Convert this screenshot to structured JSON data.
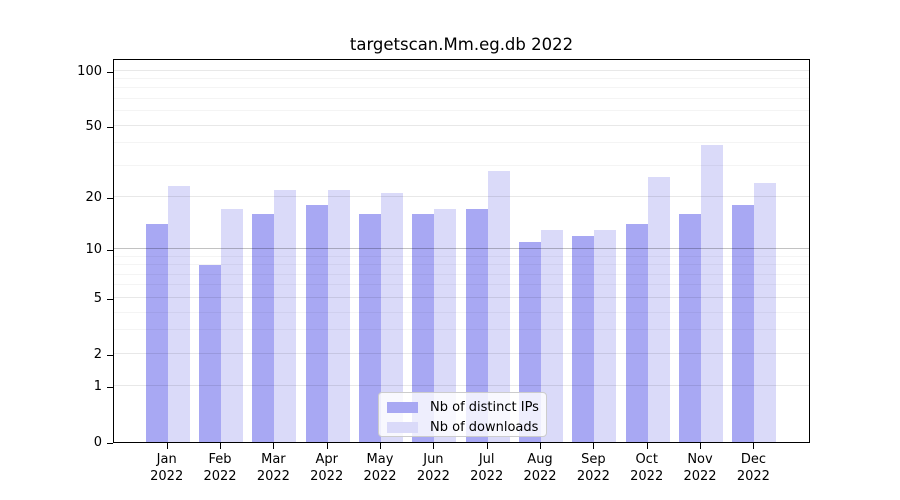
{
  "chart_data": {
    "type": "bar",
    "title": "targetscan.Mm.eg.db 2022",
    "categories": [
      "Jan 2022",
      "Feb 2022",
      "Mar 2022",
      "Apr 2022",
      "May 2022",
      "Jun 2022",
      "Jul 2022",
      "Aug 2022",
      "Sep 2022",
      "Oct 2022",
      "Nov 2022",
      "Dec 2022"
    ],
    "series": [
      {
        "name": "Nb of distinct IPs",
        "color": "#a8a8f3",
        "values": [
          14,
          8,
          16,
          18,
          16,
          16,
          17,
          11,
          12,
          14,
          16,
          18
        ]
      },
      {
        "name": "Nb of downloads",
        "color": "#dadaf9",
        "values": [
          23,
          17,
          22,
          22,
          21,
          17,
          28,
          13,
          13,
          26,
          39,
          24
        ]
      }
    ],
    "xlabel": "",
    "ylabel": "",
    "y_scale": "log1p",
    "ylim": [
      0,
      117
    ],
    "y_ticks": [
      100,
      50,
      20,
      10,
      5,
      2,
      1,
      0
    ],
    "y_minor_gridlines": [
      3,
      4,
      6,
      7,
      8,
      9,
      30,
      40,
      60,
      70,
      80,
      90
    ],
    "grid": true,
    "legend_position": "lower center"
  }
}
